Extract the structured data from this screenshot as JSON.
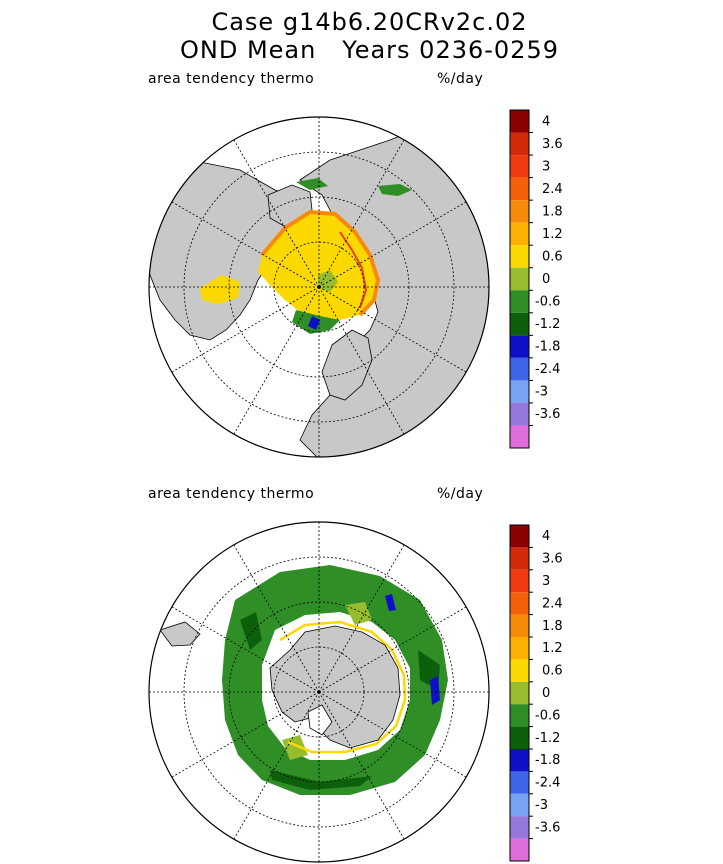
{
  "title_line1": "Case g14b6.20CRv2c.02",
  "title_line2": "OND Mean   Years 0236-0259",
  "panels": [
    {
      "id": "north",
      "variable_label": "area tendency thermo",
      "units_label": "%/day"
    },
    {
      "id": "south",
      "variable_label": "area tendency thermo",
      "units_label": "%/day"
    }
  ],
  "colorbar": {
    "tick_labels": [
      "4",
      "3.6",
      "3",
      "2.4",
      "1.8",
      "1.2",
      "0.6",
      "0",
      "-0.6",
      "-1.2",
      "-1.8",
      "-2.4",
      "-3",
      "-3.6"
    ],
    "colors_top_to_bottom": [
      "#8b0000",
      "#d42a0c",
      "#f03c10",
      "#f55f0a",
      "#f88a0a",
      "#fcb000",
      "#fbd800",
      "#97bd2f",
      "#2f8f26",
      "#0d600b",
      "#0d10c8",
      "#3e64e8",
      "#7aa2f2",
      "#9477d8",
      "#e06ddc"
    ]
  },
  "map_colors": {
    "land": "#c8c8c8",
    "ocean": "#ffffff",
    "grid": "#000000"
  }
}
